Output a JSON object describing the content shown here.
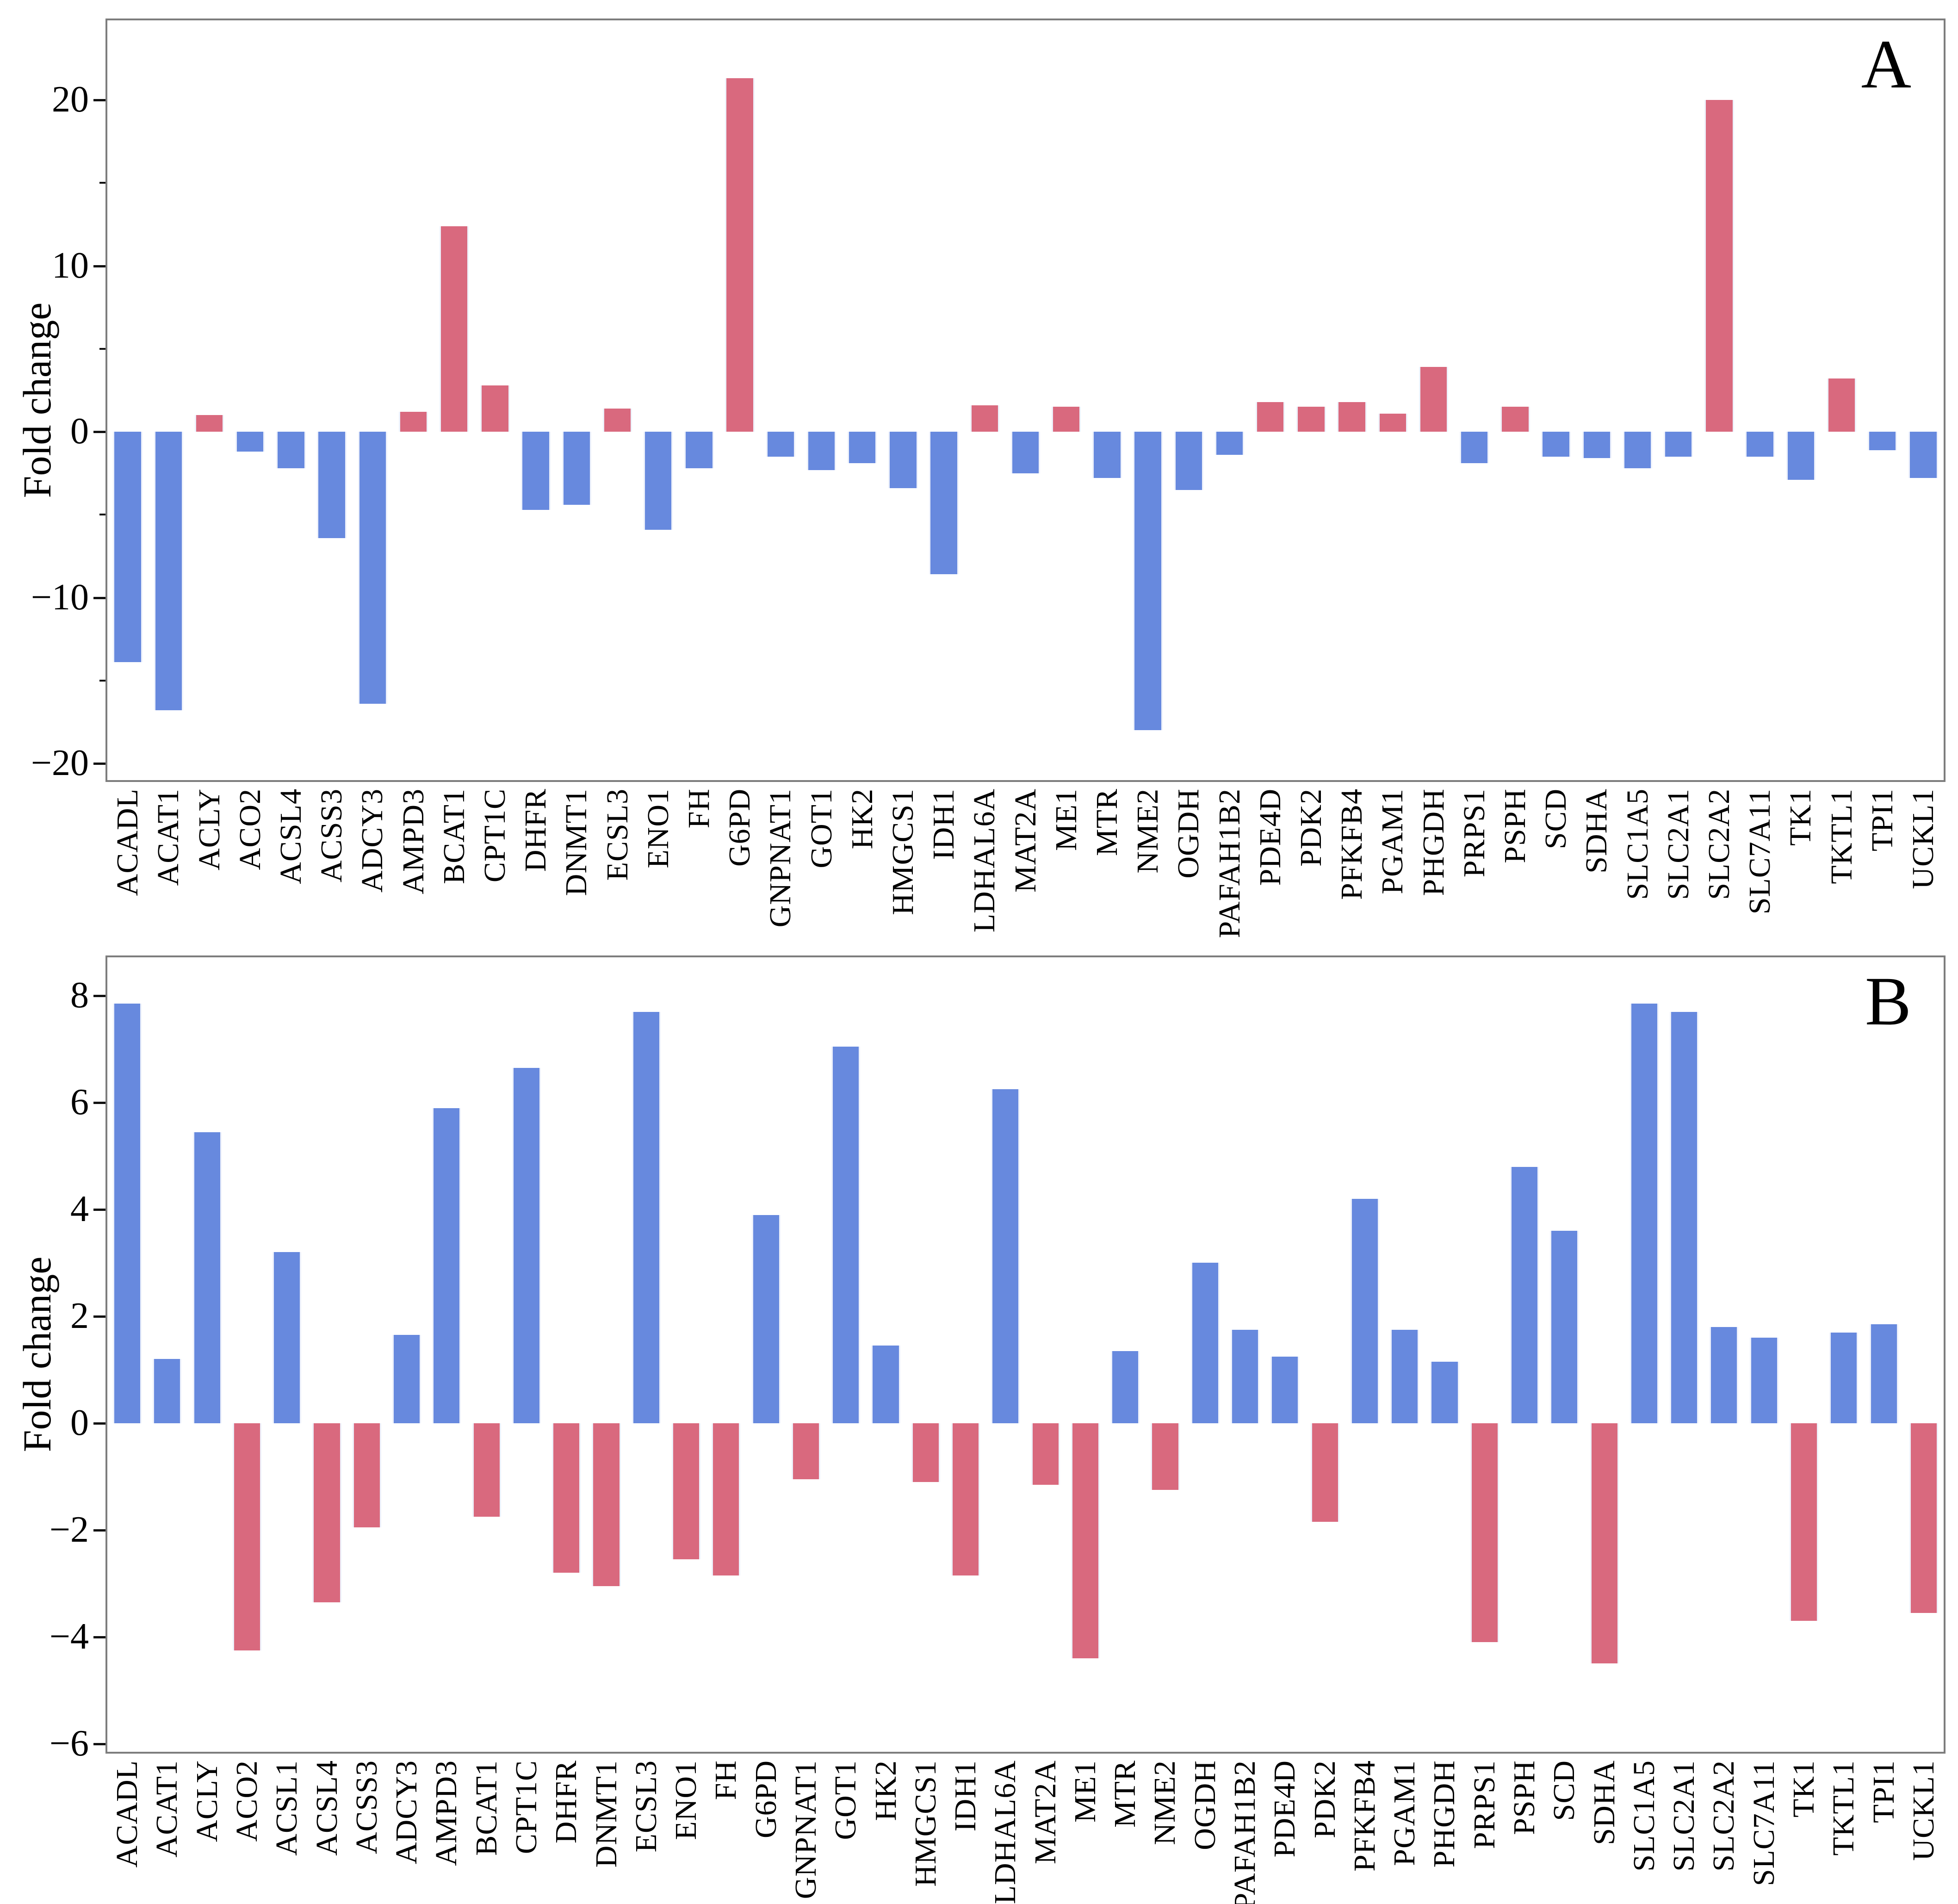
{
  "figure": {
    "background": "#ffffff",
    "accent_positive_panelA": "#d9697e",
    "accent_negative_panelA": "#6789de",
    "accent_positive_panelB": "#6789de",
    "accent_negative_panelB": "#d9697e"
  },
  "chart_data": [
    {
      "type": "bar",
      "panel_label": "A",
      "title": "",
      "xlabel": "",
      "ylabel": "Fold change",
      "ylim": [
        -21.0,
        24.8
      ],
      "grid": false,
      "legend": "none",
      "positive_color": "#d9697e",
      "negative_color": "#6789de",
      "bar_edge_color": "#edf1fb",
      "yticks": [
        {
          "v": 20,
          "label": "20"
        },
        {
          "v": 10,
          "label": "10"
        },
        {
          "v": 0,
          "label": "0"
        },
        {
          "v": -10,
          "label": "−10"
        },
        {
          "v": -20,
          "label": "−20"
        }
      ],
      "minor_yticks": [
        15,
        5,
        -5,
        -15
      ],
      "categories": [
        "ACADL",
        "ACAT1",
        "ACLY",
        "ACO2",
        "ACSL4",
        "ACSS3",
        "ADCY3",
        "AMPD3",
        "BCAT1",
        "CPT1C",
        "DHFR",
        "DNMT1",
        "ECSL3",
        "ENO1",
        "FH",
        "G6PD",
        "GNPNAT1",
        "GOT1",
        "HK2",
        "HMGCS1",
        "IDH1",
        "LDHAL6A",
        "MAT2A",
        "ME1",
        "MTR",
        "NME2",
        "OGDH",
        "PAFAH1B2",
        "PDE4D",
        "PDK2",
        "PFKFB4",
        "PGAM1",
        "PHGDH",
        "PRPS1",
        "PSPH",
        "SCD",
        "SDHA",
        "SLC1A5",
        "SLC2A1",
        "SLC2A2",
        "SLC7A11",
        "TK1",
        "TKTL1",
        "TPI1",
        "UCKL1"
      ],
      "values": [
        -13.9,
        -16.8,
        1.0,
        -1.2,
        -2.2,
        -6.4,
        -16.4,
        1.2,
        12.4,
        2.8,
        -4.7,
        -4.4,
        1.4,
        -5.9,
        -2.2,
        21.3,
        -1.5,
        -2.3,
        -1.9,
        -3.4,
        -8.6,
        1.6,
        -2.5,
        1.5,
        -2.8,
        -18.0,
        -3.5,
        -1.4,
        1.8,
        1.5,
        1.8,
        1.1,
        3.9,
        -1.9,
        1.5,
        -1.5,
        -1.6,
        -2.2,
        -1.5,
        20.0,
        -1.5,
        -2.9,
        3.2,
        -1.1,
        -2.8
      ]
    },
    {
      "type": "bar",
      "panel_label": "B",
      "title": "",
      "xlabel": "",
      "ylabel": "Fold change",
      "ylim": [
        -6.15,
        8.72
      ],
      "grid": false,
      "legend": "none",
      "positive_color": "#6789de",
      "negative_color": "#d9697e",
      "bar_edge_color": "#edf1fb",
      "yticks": [
        {
          "v": 8,
          "label": "8"
        },
        {
          "v": 6,
          "label": "6"
        },
        {
          "v": 4,
          "label": "4"
        },
        {
          "v": 2,
          "label": "2"
        },
        {
          "v": 0,
          "label": "0"
        },
        {
          "v": -2,
          "label": "−2"
        },
        {
          "v": -4,
          "label": "−4"
        },
        {
          "v": -6,
          "label": "−6"
        }
      ],
      "minor_yticks": [],
      "categories": [
        "ACADL",
        "ACAT1",
        "ACLY",
        "ACO2",
        "ACSL1",
        "ACSL4",
        "ACSS3",
        "ADCY3",
        "AMPD3",
        "BCAT1",
        "CPT1C",
        "DHFR",
        "DNMT1",
        "ECSL3",
        "ENO1",
        "FH",
        "G6PD",
        "GNPNAT1",
        "GOT1",
        "HK2",
        "HMGCS1",
        "IDH1",
        "LDHAL6A",
        "MAT2A",
        "ME1",
        "MTR",
        "NME2",
        "OGDH",
        "PAFAH1B2",
        "PDE4D",
        "PDK2",
        "PFKFB4",
        "PGAM1",
        "PHGDH",
        "PRPS1",
        "PSPH",
        "SCD",
        "SDHA",
        "SLC1A5",
        "SLC2A1",
        "SLC2A2",
        "SLC7A11",
        "TK1",
        "TKTL1",
        "TPI1",
        "UCKL1"
      ],
      "values": [
        7.85,
        1.2,
        5.45,
        -4.25,
        3.2,
        -3.35,
        -1.95,
        1.65,
        5.9,
        -1.75,
        6.65,
        -2.8,
        -3.05,
        7.7,
        -2.55,
        -2.85,
        3.9,
        -1.05,
        7.05,
        1.45,
        -1.1,
        -2.85,
        6.25,
        -1.15,
        -4.4,
        1.35,
        -1.25,
        3.0,
        1.75,
        1.25,
        -1.85,
        4.2,
        1.75,
        1.15,
        -4.1,
        4.8,
        3.6,
        -4.5,
        7.85,
        7.7,
        1.8,
        1.6,
        -3.7,
        1.7,
        1.85,
        -3.55
      ]
    }
  ]
}
